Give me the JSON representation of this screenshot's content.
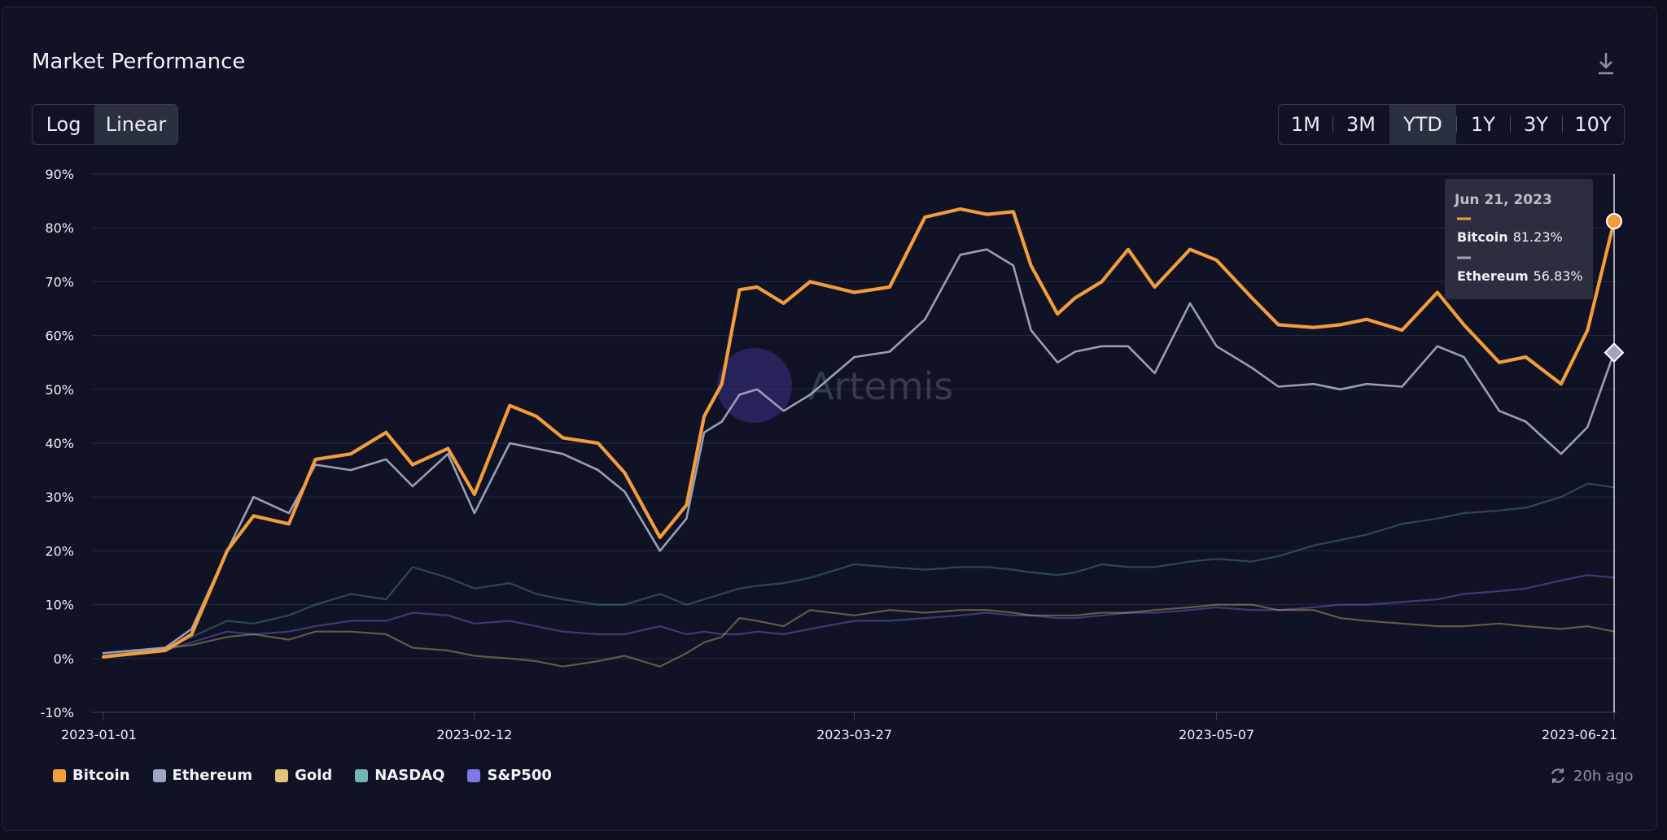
{
  "header": {
    "title": "Market Performance"
  },
  "scale_toggle": {
    "options": [
      "Log",
      "Linear"
    ],
    "selected": "Linear"
  },
  "range_toggle": {
    "options": [
      "1M",
      "3M",
      "YTD",
      "1Y",
      "3Y",
      "10Y"
    ],
    "selected": "YTD"
  },
  "watermark": "Artemis",
  "icons": {
    "download": "download-icon",
    "refresh": "refresh-icon"
  },
  "footer": {
    "updated": "20h ago"
  },
  "tooltip": {
    "date": "Jun 21, 2023",
    "entries": [
      {
        "name": "Bitcoin",
        "value": "81.23%"
      },
      {
        "name": "Ethereum",
        "value": "56.83%"
      }
    ]
  },
  "colors": {
    "bitcoin": "#f39c3c",
    "ethereum": "#9ea6c2",
    "gold": "#e3c47a",
    "nasdaq": "#6fb7b0",
    "sp500": "#7f78e8"
  },
  "chart_data": {
    "type": "line",
    "title": "Market Performance",
    "y_unit": "%",
    "ylim": [
      -10,
      90
    ],
    "yticks": [
      "90%",
      "80%",
      "70%",
      "60%",
      "50%",
      "40%",
      "30%",
      "20%",
      "10%",
      "0%",
      "-10%"
    ],
    "xticks": [
      "2023-01-01",
      "2023-02-12",
      "2023-03-27",
      "2023-05-07",
      "2023-06-21"
    ],
    "x": [
      "2023-01-01",
      "2023-01-08",
      "2023-01-11",
      "2023-01-15",
      "2023-01-18",
      "2023-01-22",
      "2023-01-25",
      "2023-01-29",
      "2023-02-02",
      "2023-02-05",
      "2023-02-09",
      "2023-02-12",
      "2023-02-16",
      "2023-02-19",
      "2023-02-22",
      "2023-02-26",
      "2023-03-01",
      "2023-03-05",
      "2023-03-08",
      "2023-03-10",
      "2023-03-12",
      "2023-03-14",
      "2023-03-16",
      "2023-03-19",
      "2023-03-22",
      "2023-03-27",
      "2023-03-31",
      "2023-04-04",
      "2023-04-08",
      "2023-04-11",
      "2023-04-14",
      "2023-04-16",
      "2023-04-19",
      "2023-04-21",
      "2023-04-24",
      "2023-04-27",
      "2023-04-30",
      "2023-05-04",
      "2023-05-07",
      "2023-05-11",
      "2023-05-14",
      "2023-05-18",
      "2023-05-21",
      "2023-05-24",
      "2023-05-28",
      "2023-06-01",
      "2023-06-04",
      "2023-06-08",
      "2023-06-11",
      "2023-06-15",
      "2023-06-18",
      "2023-06-21"
    ],
    "series": [
      {
        "name": "Bitcoin",
        "color": "#f39c3c",
        "values": [
          0.3,
          1.5,
          4.5,
          20.0,
          26.5,
          25.0,
          37.0,
          38.0,
          42.0,
          36.0,
          39.0,
          30.5,
          47.0,
          45.0,
          41.0,
          40.0,
          34.5,
          22.5,
          28.5,
          45.0,
          51.0,
          68.5,
          69.0,
          66.0,
          70.0,
          68.0,
          69.0,
          82.0,
          83.5,
          82.5,
          83.0,
          73.0,
          64.0,
          67.0,
          70.0,
          76.0,
          69.0,
          76.0,
          74.0,
          67.0,
          62.0,
          61.5,
          62.0,
          63.0,
          61.0,
          68.0,
          62.0,
          55.0,
          56.0,
          51.0,
          61.0,
          81.23
        ]
      },
      {
        "name": "Ethereum",
        "color": "#9ea6c2",
        "values": [
          1.0,
          2.0,
          5.5,
          20.0,
          30.0,
          27.0,
          36.0,
          35.0,
          37.0,
          32.0,
          38.0,
          27.0,
          40.0,
          39.0,
          38.0,
          35.0,
          31.0,
          20.0,
          26.0,
          42.0,
          44.0,
          49.0,
          50.0,
          46.0,
          49.0,
          56.0,
          57.0,
          63.0,
          75.0,
          76.0,
          73.0,
          61.0,
          55.0,
          57.0,
          58.0,
          58.0,
          53.0,
          66.0,
          58.0,
          54.0,
          50.5,
          51.0,
          50.0,
          51.0,
          50.5,
          58.0,
          56.0,
          46.0,
          44.0,
          38.0,
          43.0,
          56.83
        ]
      },
      {
        "name": "Gold",
        "color": "#e3c47a",
        "values": [
          0.3,
          2.0,
          2.5,
          4.0,
          4.5,
          3.5,
          5.0,
          5.0,
          4.5,
          2.0,
          1.5,
          0.5,
          0.0,
          -0.5,
          -1.5,
          -0.5,
          0.5,
          -1.5,
          1.0,
          3.0,
          4.0,
          7.5,
          7.0,
          6.0,
          9.0,
          8.0,
          9.0,
          8.5,
          9.0,
          9.0,
          8.5,
          8.0,
          8.0,
          8.0,
          8.5,
          8.5,
          9.0,
          9.5,
          10.0,
          10.0,
          9.0,
          9.0,
          7.5,
          7.0,
          6.5,
          6.0,
          6.0,
          6.5,
          6.0,
          5.5,
          6.0,
          5.0
        ]
      },
      {
        "name": "NASDAQ",
        "color": "#6fb7b0",
        "values": [
          0.5,
          2.0,
          4.0,
          7.0,
          6.5,
          8.0,
          10.0,
          12.0,
          11.0,
          17.0,
          15.0,
          13.0,
          14.0,
          12.0,
          11.0,
          10.0,
          10.0,
          12.0,
          10.0,
          11.0,
          12.0,
          13.0,
          13.5,
          14.0,
          15.0,
          17.5,
          17.0,
          16.5,
          17.0,
          17.0,
          16.5,
          16.0,
          15.5,
          16.0,
          17.5,
          17.0,
          17.0,
          18.0,
          18.5,
          18.0,
          19.0,
          21.0,
          22.0,
          23.0,
          25.0,
          26.0,
          27.0,
          27.5,
          28.0,
          30.0,
          32.5,
          31.8
        ]
      },
      {
        "name": "S&P500",
        "color": "#7f78e8",
        "values": [
          0.5,
          1.5,
          3.0,
          5.0,
          4.5,
          5.0,
          6.0,
          7.0,
          7.0,
          8.5,
          8.0,
          6.5,
          7.0,
          6.0,
          5.0,
          4.5,
          4.5,
          6.0,
          4.5,
          5.0,
          4.5,
          4.5,
          5.0,
          4.5,
          5.5,
          7.0,
          7.0,
          7.5,
          8.0,
          8.5,
          8.0,
          8.0,
          7.5,
          7.5,
          8.0,
          8.5,
          8.5,
          9.0,
          9.5,
          9.0,
          9.0,
          9.5,
          10.0,
          10.0,
          10.5,
          11.0,
          12.0,
          12.5,
          13.0,
          14.5,
          15.5,
          15.0
        ]
      }
    ],
    "legend": [
      "Bitcoin",
      "Ethereum",
      "Gold",
      "NASDAQ",
      "S&P500"
    ],
    "legend_position": "bottom-left",
    "grid": true
  }
}
